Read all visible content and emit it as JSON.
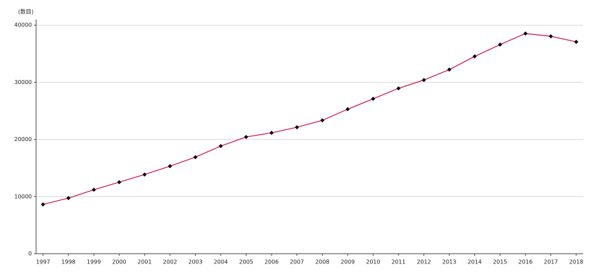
{
  "chart_data": {
    "type": "line",
    "y_label": "(数目)",
    "categories": [
      "1997",
      "1998",
      "1999",
      "2000",
      "2001",
      "2002",
      "2003",
      "2004",
      "2005",
      "2006",
      "2007",
      "2008",
      "2009",
      "2010",
      "2011",
      "2012",
      "2013",
      "2014",
      "2015",
      "2016",
      "2017",
      "2018"
    ],
    "series": [
      {
        "color": "#cc1144",
        "marker_color": "#000000",
        "values": [
          8630,
          9730,
          11190,
          12520,
          13860,
          15320,
          16900,
          18840,
          20430,
          21150,
          22130,
          23340,
          25290,
          27110,
          28940,
          30400,
          32220,
          34530,
          36600,
          38540,
          38050,
          37080
        ]
      }
    ],
    "ylim": [
      0,
      41000
    ],
    "yticks": [
      0,
      10000,
      20000,
      30000,
      40000
    ],
    "grid": true
  }
}
